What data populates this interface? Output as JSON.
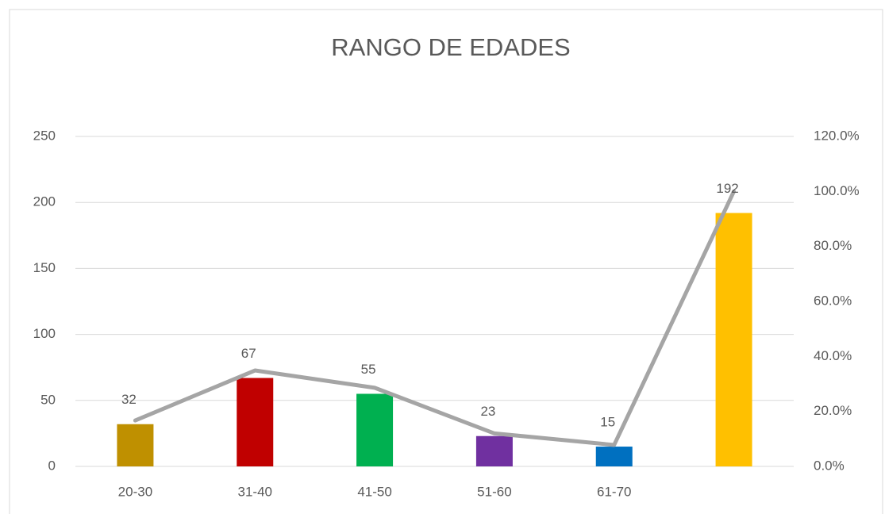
{
  "chart_data": {
    "type": "bar",
    "title": "RANGO DE EDADES",
    "categories": [
      "20-30",
      "31-40",
      "41-50",
      "51-60",
      "61-70",
      null
    ],
    "series": [
      {
        "type": "bar",
        "values": [
          32,
          67,
          55,
          23,
          15,
          192
        ],
        "colors": [
          "#bf9000",
          "#c00000",
          "#00b050",
          "#7030a0",
          "#0070c0",
          "#ffc000"
        ],
        "data_labels": true
      },
      {
        "type": "line",
        "axis": "y2",
        "color": "#a5a5a5",
        "values": [
          16.7,
          34.9,
          28.6,
          12.0,
          7.8,
          100
        ]
      }
    ],
    "ylim": [
      0,
      250
    ],
    "yticks": [
      0,
      50,
      100,
      150,
      200,
      250
    ],
    "y2lim": [
      0,
      120
    ],
    "y2ticks": [
      {
        "value": 0,
        "label": "0.0%"
      },
      {
        "value": 20,
        "label": "20.0%"
      },
      {
        "value": 40,
        "label": "40.0%"
      },
      {
        "value": 60,
        "label": "60.0%"
      },
      {
        "value": 80,
        "label": "80.0%"
      },
      {
        "value": 100,
        "label": "100.0%"
      },
      {
        "value": 120,
        "label": "120.0%"
      }
    ],
    "grid": true
  }
}
